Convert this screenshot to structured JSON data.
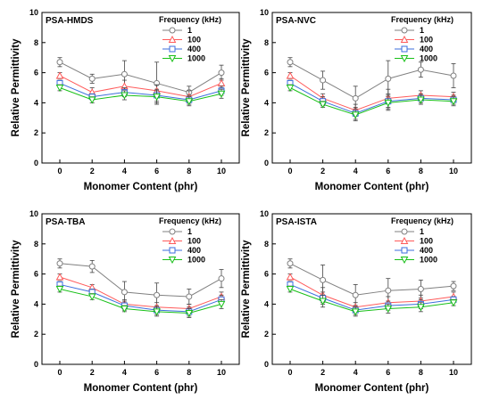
{
  "legend_title": "Frequency (kHz)",
  "colors": {
    "1": "#808080",
    "100": "#ff5a5a",
    "400": "#3c6edc",
    "1000": "#18c018"
  },
  "marker_shapes": {
    "1": "circle",
    "100": "triangle-up",
    "400": "square",
    "1000": "triangle-down"
  },
  "chart_data": [
    {
      "type": "line",
      "title": "PSA-HMDS",
      "xlabel": "Monomer Content (phr)",
      "ylabel": "Relative Permittivity",
      "x": [
        0,
        2,
        4,
        6,
        8,
        10
      ],
      "xticks": [
        "0",
        "2",
        "4",
        "6",
        "8",
        "10"
      ],
      "ylim": [
        0,
        10
      ],
      "yticks": [
        "0",
        "2",
        "4",
        "6",
        "8",
        "10"
      ],
      "legend_placement": "top-right",
      "series": [
        {
          "name": "1",
          "values": [
            6.7,
            5.6,
            5.9,
            5.3,
            4.7,
            6.0
          ],
          "errors": [
            0.3,
            0.3,
            0.9,
            1.4,
            0.4,
            0.5
          ]
        },
        {
          "name": "100",
          "values": [
            5.8,
            4.7,
            5.1,
            4.8,
            4.4,
            5.3
          ],
          "errors": [
            0.2,
            0.3,
            0.4,
            0.4,
            0.4,
            0.3
          ]
        },
        {
          "name": "400",
          "values": [
            5.3,
            4.4,
            4.7,
            4.5,
            4.2,
            4.8
          ],
          "errors": [
            0.2,
            0.2,
            0.3,
            0.4,
            0.3,
            0.3
          ]
        },
        {
          "name": "1000",
          "values": [
            5.0,
            4.2,
            4.5,
            4.4,
            4.1,
            4.6
          ],
          "errors": [
            0.2,
            0.2,
            0.3,
            0.4,
            0.3,
            0.3
          ]
        }
      ]
    },
    {
      "type": "line",
      "title": "PSA-NVC",
      "xlabel": "Monomer Content (phr)",
      "ylabel": "Relative Permittivity",
      "x": [
        0,
        2,
        4,
        6,
        8,
        10
      ],
      "xticks": [
        "0",
        "2",
        "4",
        "6",
        "8",
        "10"
      ],
      "ylim": [
        0,
        10
      ],
      "yticks": [
        "0",
        "2",
        "4",
        "6",
        "8",
        "10"
      ],
      "legend_placement": "top-right",
      "series": [
        {
          "name": "1",
          "values": [
            6.7,
            5.5,
            4.3,
            5.6,
            6.2,
            5.8
          ],
          "errors": [
            0.3,
            0.6,
            0.8,
            1.2,
            0.5,
            0.8
          ]
        },
        {
          "name": "100",
          "values": [
            5.8,
            4.3,
            3.5,
            4.3,
            4.5,
            4.4
          ],
          "errors": [
            0.2,
            0.3,
            0.4,
            0.6,
            0.3,
            0.3
          ]
        },
        {
          "name": "400",
          "values": [
            5.3,
            4.1,
            3.3,
            4.1,
            4.3,
            4.2
          ],
          "errors": [
            0.2,
            0.3,
            0.4,
            0.5,
            0.3,
            0.3
          ]
        },
        {
          "name": "1000",
          "values": [
            5.0,
            3.9,
            3.2,
            4.0,
            4.2,
            4.1
          ],
          "errors": [
            0.2,
            0.2,
            0.4,
            0.5,
            0.3,
            0.3
          ]
        }
      ]
    },
    {
      "type": "line",
      "title": "PSA-TBA",
      "xlabel": "Monomer Content (phr)",
      "ylabel": "Relative Permittivity",
      "x": [
        0,
        2,
        4,
        6,
        8,
        10
      ],
      "xticks": [
        "0",
        "2",
        "4",
        "6",
        "8",
        "10"
      ],
      "ylim": [
        0,
        10
      ],
      "yticks": [
        "0",
        "2",
        "4",
        "6",
        "8",
        "10"
      ],
      "legend_placement": "top-right",
      "series": [
        {
          "name": "1",
          "values": [
            6.7,
            6.5,
            4.8,
            4.6,
            4.5,
            5.7
          ],
          "errors": [
            0.3,
            0.4,
            0.7,
            0.8,
            0.5,
            0.6
          ]
        },
        {
          "name": "100",
          "values": [
            5.8,
            5.1,
            4.0,
            3.8,
            3.7,
            4.5
          ],
          "errors": [
            0.2,
            0.2,
            0.3,
            0.3,
            0.3,
            0.3
          ]
        },
        {
          "name": "400",
          "values": [
            5.3,
            4.8,
            3.9,
            3.6,
            3.5,
            4.3
          ],
          "errors": [
            0.2,
            0.2,
            0.3,
            0.3,
            0.3,
            0.3
          ]
        },
        {
          "name": "1000",
          "values": [
            5.0,
            4.5,
            3.7,
            3.5,
            3.4,
            4.0
          ],
          "errors": [
            0.2,
            0.2,
            0.2,
            0.3,
            0.3,
            0.3
          ]
        }
      ]
    },
    {
      "type": "line",
      "title": "PSA-ISTA",
      "xlabel": "Monomer Content (phr)",
      "ylabel": "Relative Permittivity",
      "x": [
        0,
        2,
        4,
        6,
        8,
        10
      ],
      "xticks": [
        "0",
        "2",
        "4",
        "6",
        "8",
        "10"
      ],
      "ylim": [
        0,
        10
      ],
      "yticks": [
        "0",
        "2",
        "4",
        "6",
        "8",
        "10"
      ],
      "legend_placement": "top-right",
      "series": [
        {
          "name": "1",
          "values": [
            6.7,
            5.6,
            4.6,
            4.9,
            5.0,
            5.2
          ],
          "errors": [
            0.3,
            1.0,
            0.7,
            0.8,
            0.6,
            0.3
          ]
        },
        {
          "name": "100",
          "values": [
            5.8,
            4.6,
            3.8,
            4.1,
            4.2,
            4.5
          ],
          "errors": [
            0.2,
            0.5,
            0.3,
            0.4,
            0.4,
            0.3
          ]
        },
        {
          "name": "400",
          "values": [
            5.3,
            4.4,
            3.6,
            3.9,
            4.0,
            4.3
          ],
          "errors": [
            0.2,
            0.4,
            0.3,
            0.3,
            0.3,
            0.2
          ]
        },
        {
          "name": "1000",
          "values": [
            5.0,
            4.2,
            3.5,
            3.7,
            3.8,
            4.1
          ],
          "errors": [
            0.2,
            0.4,
            0.3,
            0.3,
            0.3,
            0.2
          ]
        }
      ]
    }
  ]
}
